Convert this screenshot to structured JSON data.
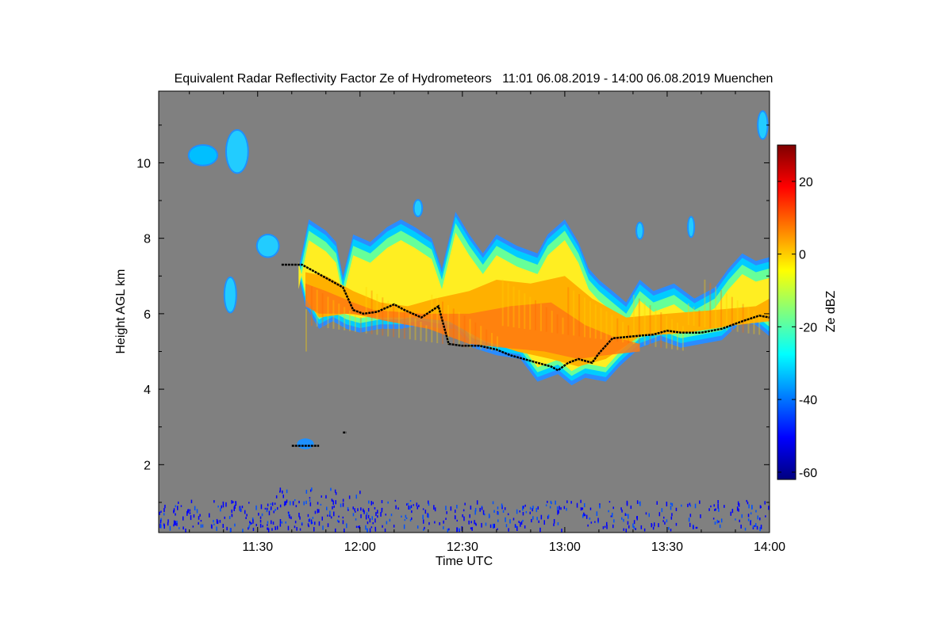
{
  "chart_data": {
    "type": "heatmap",
    "title": "Equivalent Radar Reflectivity Factor Ze of Hydrometeors   11:01 06.08.2019 - 14:00 06.08.2019 Muenchen",
    "xlabel": "Time UTC",
    "ylabel": "Height AGL km",
    "colorbar_label": "Ze dBZ",
    "x_range_minutes": [
      -29,
      150
    ],
    "x_ticks": [
      {
        "label": "11:30",
        "minutes": 0
      },
      {
        "label": "12:00",
        "minutes": 30
      },
      {
        "label": "12:30",
        "minutes": 60
      },
      {
        "label": "13:00",
        "minutes": 90
      },
      {
        "label": "13:30",
        "minutes": 120
      },
      {
        "label": "14:00",
        "minutes": 150
      }
    ],
    "y_range_km": [
      0.2,
      11.9
    ],
    "y_ticks": [
      2,
      4,
      6,
      8,
      10
    ],
    "colorbar_range_dbz": [
      -62,
      30
    ],
    "colorbar_ticks": [
      20,
      0,
      -20,
      -40,
      -60
    ],
    "background_color": "#808080",
    "colormap": [
      "#00007f",
      "#0000ff",
      "#007fff",
      "#00ffff",
      "#7fff7f",
      "#ffff00",
      "#ff7f00",
      "#ff0000",
      "#7f0000"
    ],
    "main_cloud": {
      "top_km": [
        [
          12,
          7.2
        ],
        [
          15,
          8.5
        ],
        [
          20,
          8.2
        ],
        [
          23,
          7.9
        ],
        [
          25,
          7.0
        ],
        [
          28,
          8.1
        ],
        [
          33,
          7.9
        ],
        [
          38,
          8.3
        ],
        [
          42,
          8.5
        ],
        [
          46,
          8.3
        ],
        [
          51,
          8.0
        ],
        [
          54,
          7.2
        ],
        [
          58,
          8.7
        ],
        [
          62,
          8.1
        ],
        [
          66,
          7.6
        ],
        [
          70,
          8.1
        ],
        [
          76,
          7.8
        ],
        [
          82,
          7.6
        ],
        [
          85,
          8.1
        ],
        [
          90,
          8.5
        ],
        [
          94,
          7.9
        ],
        [
          97,
          7.2
        ],
        [
          100,
          6.9
        ],
        [
          104,
          6.6
        ],
        [
          108,
          6.3
        ],
        [
          112,
          6.9
        ],
        [
          116,
          6.6
        ],
        [
          122,
          6.8
        ],
        [
          128,
          6.4
        ],
        [
          134,
          6.7
        ],
        [
          138,
          7.2
        ],
        [
          142,
          7.6
        ],
        [
          146,
          7.4
        ],
        [
          150,
          7.5
        ]
      ],
      "base_km": [
        [
          150,
          5.4
        ],
        [
          146,
          5.7
        ],
        [
          142,
          5.8
        ],
        [
          136,
          5.3
        ],
        [
          130,
          5.2
        ],
        [
          124,
          5.1
        ],
        [
          118,
          5.3
        ],
        [
          112,
          5.1
        ],
        [
          106,
          4.6
        ],
        [
          102,
          4.2
        ],
        [
          96,
          4.3
        ],
        [
          92,
          4.1
        ],
        [
          88,
          4.4
        ],
        [
          82,
          4.2
        ],
        [
          77,
          4.8
        ],
        [
          70,
          4.9
        ],
        [
          63,
          5.1
        ],
        [
          58,
          5.6
        ],
        [
          54,
          5.6
        ],
        [
          48,
          5.7
        ],
        [
          42,
          5.6
        ],
        [
          36,
          5.6
        ],
        [
          30,
          5.5
        ],
        [
          26,
          5.6
        ],
        [
          22,
          5.8
        ],
        [
          18,
          5.6
        ],
        [
          14,
          6.2
        ],
        [
          12,
          7.0
        ]
      ],
      "core_top_km": [
        [
          14,
          7.1
        ],
        [
          20,
          7.0
        ],
        [
          28,
          6.6
        ],
        [
          36,
          6.3
        ],
        [
          44,
          6.2
        ],
        [
          52,
          6.4
        ],
        [
          62,
          6.6
        ],
        [
          70,
          6.9
        ],
        [
          80,
          6.8
        ],
        [
          90,
          7.0
        ],
        [
          98,
          6.4
        ],
        [
          108,
          5.9
        ],
        [
          120,
          6.0
        ],
        [
          134,
          6.1
        ],
        [
          146,
          6.2
        ],
        [
          150,
          6.4
        ]
      ],
      "core_base_km": [
        [
          150,
          5.8
        ],
        [
          140,
          5.7
        ],
        [
          126,
          5.5
        ],
        [
          112,
          5.4
        ],
        [
          102,
          4.8
        ],
        [
          94,
          4.6
        ],
        [
          86,
          4.8
        ],
        [
          76,
          5.0
        ],
        [
          66,
          5.3
        ],
        [
          56,
          5.8
        ],
        [
          46,
          5.9
        ],
        [
          36,
          5.9
        ],
        [
          26,
          6.0
        ],
        [
          18,
          5.9
        ],
        [
          14,
          6.4
        ]
      ],
      "hot_core_top_km": [
        [
          14,
          6.8
        ],
        [
          20,
          6.6
        ],
        [
          28,
          6.3
        ],
        [
          34,
          6.1
        ],
        [
          48,
          6.0
        ],
        [
          62,
          6.0
        ],
        [
          74,
          6.2
        ],
        [
          86,
          6.3
        ],
        [
          96,
          5.7
        ],
        [
          104,
          5.4
        ],
        [
          112,
          5.2
        ]
      ],
      "hot_core_base_km": [
        [
          112,
          5.0
        ],
        [
          102,
          4.9
        ],
        [
          94,
          4.8
        ],
        [
          84,
          5.0
        ],
        [
          72,
          5.1
        ],
        [
          62,
          5.2
        ],
        [
          50,
          5.6
        ],
        [
          38,
          5.8
        ],
        [
          28,
          6.0
        ],
        [
          18,
          6.0
        ],
        [
          14,
          6.2
        ]
      ]
    },
    "small_clouds": [
      {
        "center": [
          -16,
          10.2
        ],
        "rx": 4,
        "ry": 0.25,
        "fill": "#00bfff"
      },
      {
        "center": [
          -6,
          10.3
        ],
        "rx": 3,
        "ry": 0.55,
        "fill": "#22ccff"
      },
      {
        "center": [
          -8,
          6.5
        ],
        "rx": 1.5,
        "ry": 0.45,
        "fill": "#22ccff"
      },
      {
        "center": [
          3,
          7.8
        ],
        "rx": 3,
        "ry": 0.28,
        "fill": "#22ccff"
      },
      {
        "center": [
          47,
          8.8
        ],
        "rx": 1,
        "ry": 0.2,
        "fill": "#22ccff"
      },
      {
        "center": [
          112,
          8.2
        ],
        "rx": 0.8,
        "ry": 0.2,
        "fill": "#22ccff"
      },
      {
        "center": [
          127,
          8.3
        ],
        "rx": 0.7,
        "ry": 0.25,
        "fill": "#22ccff"
      },
      {
        "center": [
          148,
          11.0
        ],
        "rx": 1.2,
        "ry": 0.35,
        "fill": "#22ccff"
      },
      {
        "center": [
          14,
          2.55
        ],
        "rx": 2,
        "ry": 0.1,
        "fill": "#1e90ff"
      }
    ],
    "melting_layer_km": [
      [
        7,
        7.3
      ],
      [
        13,
        7.3
      ],
      [
        25,
        6.7
      ],
      [
        28,
        6.1
      ],
      [
        31,
        6.0
      ],
      [
        35,
        6.05
      ],
      [
        40,
        6.25
      ],
      [
        43,
        6.1
      ],
      [
        48,
        5.9
      ],
      [
        53,
        6.2
      ],
      [
        56,
        5.2
      ],
      [
        60,
        5.15
      ],
      [
        65,
        5.15
      ],
      [
        70,
        5.05
      ],
      [
        74,
        4.9
      ],
      [
        78,
        4.8
      ],
      [
        82,
        4.7
      ],
      [
        86,
        4.6
      ],
      [
        88,
        4.5
      ],
      [
        91,
        4.7
      ],
      [
        94,
        4.8
      ],
      [
        98,
        4.7
      ],
      [
        100,
        4.95
      ],
      [
        104,
        5.35
      ],
      [
        110,
        5.4
      ],
      [
        116,
        5.45
      ],
      [
        120,
        5.55
      ],
      [
        124,
        5.5
      ],
      [
        130,
        5.5
      ],
      [
        136,
        5.6
      ],
      [
        142,
        5.8
      ],
      [
        147,
        5.95
      ],
      [
        150,
        5.9
      ]
    ],
    "low_features_km": [
      [
        [
          10,
          2.5
        ],
        [
          18,
          2.5
        ]
      ],
      [
        [
          25,
          2.85
        ],
        [
          26,
          2.85
        ]
      ]
    ],
    "clutter_band_km": [
      0.3,
      1.4
    ]
  }
}
